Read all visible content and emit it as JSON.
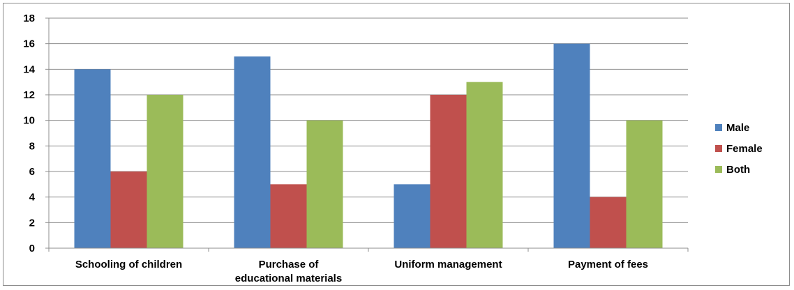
{
  "chart_data": {
    "type": "bar",
    "categories": [
      [
        "Schooling of children"
      ],
      [
        "Purchase of",
        "educational materials"
      ],
      [
        "Uniform management"
      ],
      [
        "Payment of fees"
      ]
    ],
    "series": [
      {
        "name": "Male",
        "color": "#4f81bd",
        "values": [
          14,
          15,
          5,
          16
        ]
      },
      {
        "name": "Female",
        "color": "#c0504d",
        "values": [
          6,
          5,
          12,
          4
        ]
      },
      {
        "name": "Both",
        "color": "#9bbb59",
        "values": [
          12,
          10,
          13,
          10
        ]
      }
    ],
    "yticks": [
      "0",
      "2",
      "4",
      "6",
      "8",
      "10",
      "12",
      "14",
      "16",
      "18"
    ],
    "ylim": [
      0,
      18
    ],
    "grid": true,
    "legend_position": "right",
    "title": "",
    "xlabel": "",
    "ylabel": ""
  }
}
